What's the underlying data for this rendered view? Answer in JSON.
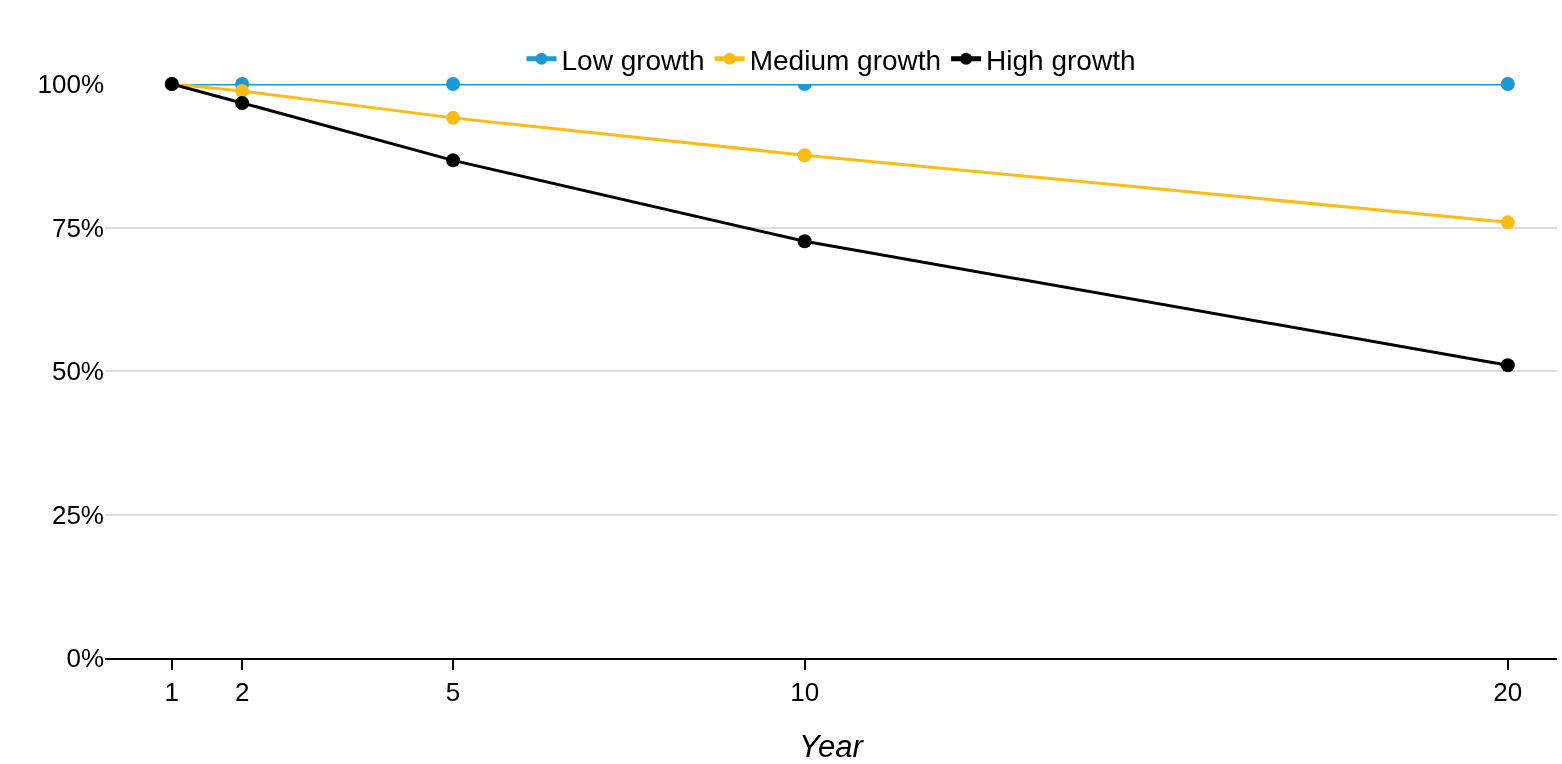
{
  "chart_data": {
    "type": "line",
    "xlabel": "Year",
    "x": [
      1,
      2,
      5,
      10,
      20
    ],
    "series": [
      {
        "name": "Low growth",
        "color": "#1b98d6",
        "values": [
          100,
          100,
          100,
          100,
          100
        ]
      },
      {
        "name": "Medium growth",
        "color": "#fbbc16",
        "values": [
          100,
          98.8,
          94.1,
          87.6,
          75.9
        ]
      },
      {
        "name": "High growth",
        "color": "#000000",
        "values": [
          100,
          96.7,
          86.7,
          72.6,
          51.0
        ]
      }
    ],
    "xlim": [
      0.05,
      20.7
    ],
    "xticks": [
      1,
      2,
      5,
      10,
      20
    ],
    "ylim": [
      0,
      100
    ],
    "yticks": [
      {
        "value": 0,
        "label": "0%"
      },
      {
        "value": 25,
        "label": "25%"
      },
      {
        "value": 50,
        "label": "50%"
      },
      {
        "value": 75,
        "label": "75%"
      },
      {
        "value": 100,
        "label": "100%"
      }
    ],
    "grid": "y",
    "legend": "top",
    "marker": "circle",
    "line_style": "solid"
  }
}
